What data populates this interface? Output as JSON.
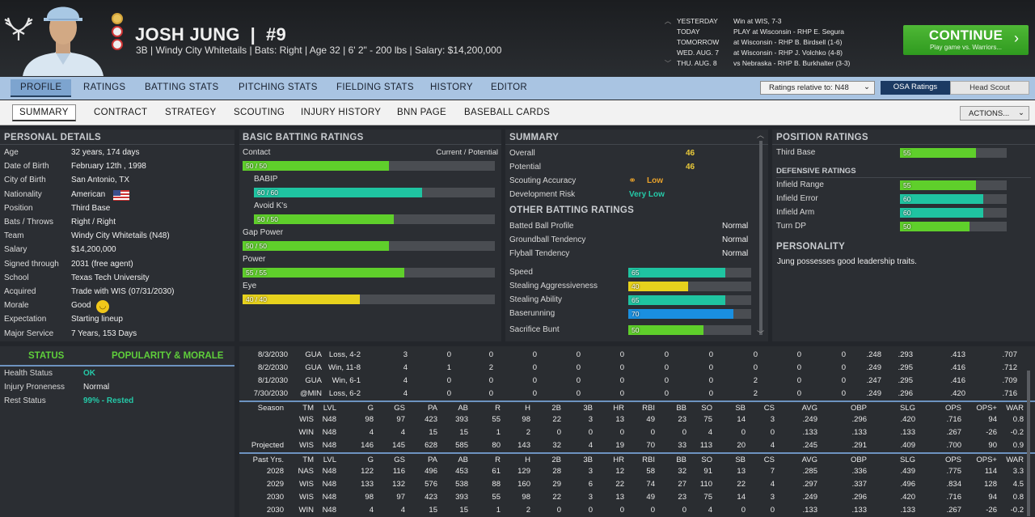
{
  "header": {
    "name": "JOSH JUNG",
    "number": "#9",
    "info": "3B | Windy City Whitetails | Bats: Right | Age 32 | 6' 2\" - 200 lbs | Salary: $14,200,000"
  },
  "schedule": [
    {
      "day": "YESTERDAY",
      "event": "Win at WIS, 7-3"
    },
    {
      "day": "TODAY",
      "event": "PLAY at Wisconsin - RHP E. Segura"
    },
    {
      "day": "TOMORROW",
      "event": "at Wisconsin - RHP B. Birdsell (1-6)"
    },
    {
      "day": "WED. AUG. 7",
      "event": "at Wisconsin - RHP J. Volchko (4-8)"
    },
    {
      "day": "THU. AUG. 8",
      "event": "vs Nebraska - RHP B. Burkhalter (3-3)"
    }
  ],
  "continue": {
    "label": "CONTINUE",
    "sub": "Play game vs. Warriors..."
  },
  "tabs1": [
    "PROFILE",
    "RATINGS",
    "BATTING STATS",
    "PITCHING STATS",
    "FIELDING STATS",
    "HISTORY",
    "EDITOR"
  ],
  "ratings_select": "Ratings relative to: N48",
  "osa": "OSA Ratings",
  "head_scout": "Head Scout",
  "tabs2": [
    "SUMMARY",
    "CONTRACT",
    "STRATEGY",
    "SCOUTING",
    "INJURY HISTORY",
    "BNN PAGE",
    "BASEBALL CARDS"
  ],
  "actions": "ACTIONS...",
  "personal": {
    "title": "PERSONAL DETAILS",
    "rows": [
      [
        "Age",
        "32 years, 174 days"
      ],
      [
        "Date of Birth",
        "February 12th , 1998"
      ],
      [
        "City of Birth",
        "San Antonio, TX"
      ],
      [
        "Nationality",
        "American"
      ],
      [
        "Position",
        "Third Base"
      ],
      [
        "Bats / Throws",
        "Right / Right"
      ],
      [
        "Team",
        "Windy City Whitetails (N48)"
      ],
      [
        "Salary",
        "$14,200,000"
      ],
      [
        "Signed through",
        "2031 (free agent)"
      ],
      [
        "School",
        "Texas Tech University"
      ],
      [
        "Acquired",
        "Trade with WIS (07/31/2030)"
      ],
      [
        "Morale",
        "Good"
      ],
      [
        "Expectation",
        "Starting lineup"
      ],
      [
        "Major Service",
        "7 Years, 153 Days"
      ]
    ]
  },
  "batting": {
    "title": "BASIC BATTING RATINGS",
    "col": "Current / Potential",
    "max": 100,
    "rows": [
      {
        "name": "Contact",
        "label": "50 / 50",
        "value": 50,
        "color": "#5fcf2b",
        "indent": false
      },
      {
        "name": "BABIP",
        "label": "60 / 60",
        "value": 60,
        "color": "#1fc4a1",
        "indent": true
      },
      {
        "name": "Avoid K's",
        "label": "50 / 50",
        "value": 50,
        "color": "#5fcf2b",
        "indent": true
      },
      {
        "name": "Gap Power",
        "label": "50 / 50",
        "value": 50,
        "color": "#5fcf2b",
        "indent": false
      },
      {
        "name": "Power",
        "label": "55 / 55",
        "value": 55,
        "color": "#5fcf2b",
        "indent": false
      },
      {
        "name": "Eye",
        "label": "40 / 40",
        "value": 40,
        "color": "#e7d21d",
        "indent": false
      }
    ]
  },
  "summary": {
    "title": "SUMMARY",
    "overall_label": "Overall",
    "overall": "46",
    "potential_label": "Potential",
    "potential": "46",
    "acc_label": "Scouting Accuracy",
    "acc": "Low",
    "risk_label": "Development Risk",
    "risk": "Very Low",
    "other_title": "OTHER BATTING RATINGS",
    "other": [
      [
        "Batted Ball Profile",
        "Normal"
      ],
      [
        "Groundball Tendency",
        "Normal"
      ],
      [
        "Flyball Tendency",
        "Normal"
      ]
    ],
    "bars": [
      {
        "name": "Speed",
        "value": 65,
        "color": "#1fc4a1"
      },
      {
        "name": "Stealing Aggressiveness",
        "value": 40,
        "color": "#e7d21d"
      },
      {
        "name": "Stealing Ability",
        "value": 65,
        "color": "#1fc4a1"
      },
      {
        "name": "Baserunning",
        "value": 70,
        "color": "#1a8fe0"
      },
      {
        "name": "Sacrifice Bunt",
        "value": 50,
        "color": "#5fcf2b"
      }
    ]
  },
  "position": {
    "title": "POSITION RATINGS",
    "main": {
      "name": "Third Base",
      "value": 55,
      "color": "#5fcf2b"
    },
    "def_title": "DEFENSIVE RATINGS",
    "def": [
      {
        "name": "Infield Range",
        "value": 55,
        "color": "#5fcf2b"
      },
      {
        "name": "Infield Error",
        "value": 60,
        "color": "#1fc4a1"
      },
      {
        "name": "Infield Arm",
        "value": 60,
        "color": "#1fc4a1"
      },
      {
        "name": "Turn DP",
        "value": 50,
        "color": "#5fcf2b"
      }
    ],
    "pers_title": "PERSONALITY",
    "pers": "Jung possesses good leadership traits."
  },
  "status": {
    "tab1": "STATUS",
    "tab2": "POPULARITY & MORALE",
    "rows": [
      [
        "Health Status",
        "OK"
      ],
      [
        "Injury Proneness",
        "Normal"
      ],
      [
        "Rest Status",
        "99% - Rested"
      ]
    ]
  },
  "log": {
    "games": [
      [
        "8/3/2030",
        "GUA",
        "Loss, 4-2",
        "3",
        "0",
        "0",
        "0",
        "0",
        "0",
        "0",
        "0",
        "0",
        "0",
        "0",
        ".248",
        ".293",
        ".413",
        ".707"
      ],
      [
        "8/2/2030",
        "GUA",
        "Win, 11-8",
        "4",
        "1",
        "2",
        "0",
        "0",
        "0",
        "0",
        "0",
        "0",
        "0",
        "0",
        ".249",
        ".295",
        ".416",
        ".712"
      ],
      [
        "8/1/2030",
        "GUA",
        "Win, 6-1",
        "4",
        "0",
        "0",
        "0",
        "0",
        "0",
        "0",
        "0",
        "2",
        "0",
        "0",
        ".247",
        ".295",
        ".416",
        ".709"
      ],
      [
        "7/30/2030",
        "@MIN",
        "Loss, 6-2",
        "4",
        "0",
        "0",
        "0",
        "0",
        "0",
        "0",
        "0",
        "2",
        "0",
        "0",
        ".249",
        ".296",
        ".420",
        ".716"
      ]
    ],
    "season_header": [
      "Season",
      "TM",
      "LVL",
      "G",
      "GS",
      "PA",
      "AB",
      "R",
      "H",
      "2B",
      "3B",
      "HR",
      "RBI",
      "BB",
      "SO",
      "SB",
      "CS",
      "AVG",
      "OBP",
      "SLG",
      "OPS",
      "OPS+",
      "WAR"
    ],
    "season": [
      [
        "",
        "WIS",
        "N48",
        "98",
        "97",
        "423",
        "393",
        "55",
        "98",
        "22",
        "3",
        "13",
        "49",
        "23",
        "75",
        "14",
        "3",
        ".249",
        ".296",
        ".420",
        ".716",
        "94",
        "0.8"
      ],
      [
        "",
        "WIN",
        "N48",
        "4",
        "4",
        "15",
        "15",
        "1",
        "2",
        "0",
        "0",
        "0",
        "0",
        "0",
        "4",
        "0",
        "0",
        ".133",
        ".133",
        ".133",
        ".267",
        "-26",
        "-0.2"
      ],
      [
        "Projected",
        "WIS",
        "N48",
        "146",
        "145",
        "628",
        "585",
        "80",
        "143",
        "32",
        "4",
        "19",
        "70",
        "33",
        "113",
        "20",
        "4",
        ".245",
        ".291",
        ".409",
        ".700",
        "90",
        "0.9"
      ]
    ],
    "past_header": [
      "Past Yrs.",
      "TM",
      "LVL",
      "G",
      "GS",
      "PA",
      "AB",
      "R",
      "H",
      "2B",
      "3B",
      "HR",
      "RBI",
      "BB",
      "SO",
      "SB",
      "CS",
      "AVG",
      "OBP",
      "SLG",
      "OPS",
      "OPS+",
      "WAR"
    ],
    "past": [
      [
        "2028",
        "NAS",
        "N48",
        "122",
        "116",
        "496",
        "453",
        "61",
        "129",
        "28",
        "3",
        "12",
        "58",
        "32",
        "91",
        "13",
        "7",
        ".285",
        ".336",
        ".439",
        ".775",
        "114",
        "3.3"
      ],
      [
        "2029",
        "WIS",
        "N48",
        "133",
        "132",
        "576",
        "538",
        "88",
        "160",
        "29",
        "6",
        "22",
        "74",
        "27",
        "110",
        "22",
        "4",
        ".297",
        ".337",
        ".496",
        ".834",
        "128",
        "4.5"
      ],
      [
        "2030",
        "WIS",
        "N48",
        "98",
        "97",
        "423",
        "393",
        "55",
        "98",
        "22",
        "3",
        "13",
        "49",
        "23",
        "75",
        "14",
        "3",
        ".249",
        ".296",
        ".420",
        ".716",
        "94",
        "0.8"
      ],
      [
        "2030",
        "WIN",
        "N48",
        "4",
        "4",
        "15",
        "15",
        "1",
        "2",
        "0",
        "0",
        "0",
        "0",
        "0",
        "4",
        "0",
        "0",
        ".133",
        ".133",
        ".133",
        ".267",
        "-26",
        "-0.2"
      ]
    ]
  }
}
